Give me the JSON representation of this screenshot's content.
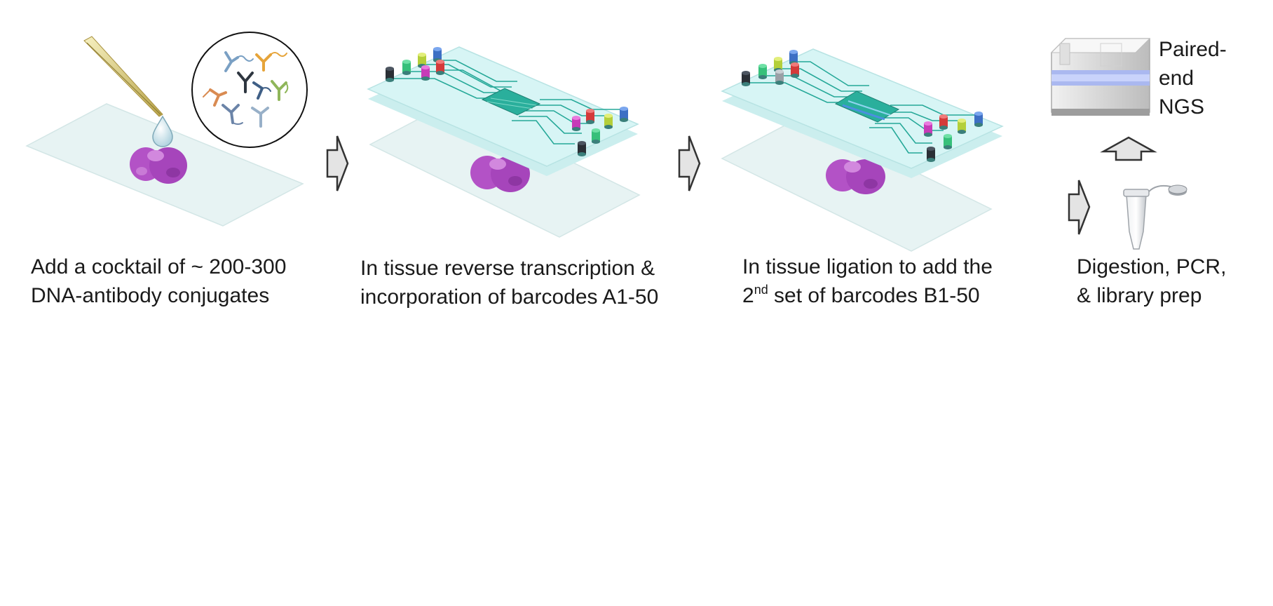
{
  "steps": [
    {
      "caption_line1": "Add a cocktail of ~ 200-300",
      "caption_line2": "DNA-antibody conjugates"
    },
    {
      "caption_line1": "In tissue reverse transcription &",
      "caption_line2": "incorporation of barcodes A1-50"
    },
    {
      "caption_line1": "In tissue ligation to add the",
      "caption_line2_prefix": "2",
      "caption_line2_sup": "nd",
      "caption_line2_rest": " set of barcodes B1-50"
    },
    {
      "caption_line1": "Digestion, PCR,",
      "caption_line2": "& library prep"
    }
  ],
  "sequencer": {
    "label_line1": "Paired-",
    "label_line2": "end",
    "label_line3": "NGS"
  },
  "colors": {
    "slide": "#e6f3f3",
    "chip": "#d5f4f4",
    "channel": "#23a99a",
    "tissue": "#b04fc0",
    "arrow_fill": "#e4e4e4",
    "arrow_stroke": "#333333"
  }
}
